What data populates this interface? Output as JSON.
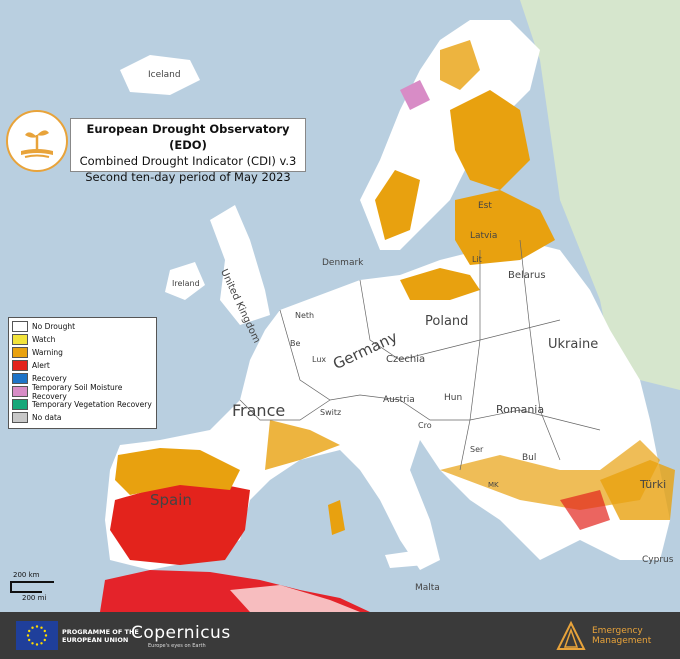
{
  "title": {
    "line1": "European Drought Observatory (EDO)",
    "line2": "Combined Drought Indicator (CDI) v.3",
    "line3": "Second ten-day period of May 2023"
  },
  "legend": {
    "items": [
      {
        "label": "No Drought",
        "color": "#ffffff"
      },
      {
        "label": "Watch",
        "color": "#f2e33a"
      },
      {
        "label": "Warning",
        "color": "#e8a10f"
      },
      {
        "label": "Alert",
        "color": "#e3231c"
      },
      {
        "label": "Recovery",
        "color": "#1e73c7"
      },
      {
        "label": "Temporary Soil Moisture Recovery",
        "color": "#d88cc6"
      },
      {
        "label": "Temporary Vegetation Recovery",
        "color": "#17a779"
      },
      {
        "label": "No data",
        "color": "#c8c8c8"
      }
    ]
  },
  "scale": {
    "km": "200 km",
    "mi": "200 mi"
  },
  "places": {
    "iceland": "Iceland",
    "est": "Est",
    "latvia": "Latvia",
    "lit": "Lit",
    "belarus": "Belarus",
    "denmark": "Denmark",
    "united_kingdom": "United Kingdom",
    "ireland": "Ireland",
    "neth": "Neth",
    "be": "Be",
    "lux": "Lux",
    "germany": "Germany",
    "poland": "Poland",
    "czechia": "Czechia",
    "ukraine": "Ukraine",
    "france": "France",
    "switz": "Switz",
    "austria": "Austria",
    "hun": "Hun",
    "romania": "Romania",
    "cro": "Cro",
    "ser": "Ser",
    "bul": "Bul",
    "mk": "MK",
    "spain": "Spain",
    "malta": "Malta",
    "cyprus": "Cyprus",
    "turkey": "Türki"
  },
  "footer": {
    "programme": "PROGRAMME OF THE\nEUROPEAN UNION",
    "copernicus": "Copernicus",
    "copernicus_sub": "Europe's eyes on Earth",
    "em": "Emergency\nManagement"
  },
  "colors": {
    "sea": "#b9cfe0",
    "land_outside": "#d8e8cf",
    "no_drought": "#ffffff",
    "warning": "#e8a10f",
    "alert": "#e3231c",
    "accent": "#e8a33a",
    "footer": "#3a3a3a"
  }
}
